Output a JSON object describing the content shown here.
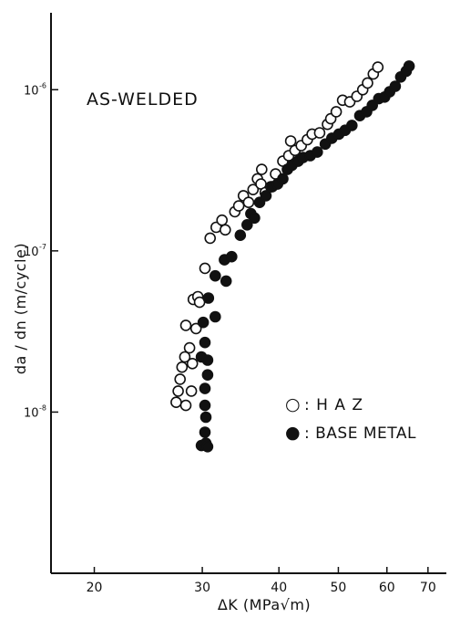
{
  "chart_data": {
    "type": "scatter",
    "title": "AS-WELDED",
    "xlabel": "ΔK (MPa√m)",
    "ylabel": "da / dn (m/cycle)",
    "x_scale": "log",
    "y_scale": "log",
    "xlim": [
      17,
      75
    ],
    "ylim": [
      1e-09,
      3e-06
    ],
    "x_ticks": [
      20,
      30,
      40,
      50,
      60,
      70
    ],
    "x_tick_labels": [
      "20",
      "30",
      "40",
      "50",
      "60",
      "70"
    ],
    "y_ticks": [
      1e-08,
      1e-07,
      1e-06
    ],
    "y_tick_labels": [
      "10",
      "10",
      "10"
    ],
    "y_tick_exponents": [
      "-8",
      "-7",
      "-6"
    ],
    "grid": false,
    "legend_position": "right",
    "series": [
      {
        "name": "HAZ",
        "marker": "open-circle",
        "color": "#111111",
        "points": [
          [
            27.2,
            1.15e-08
          ],
          [
            27.4,
            1.35e-08
          ],
          [
            27.6,
            1.6e-08
          ],
          [
            27.8,
            1.9e-08
          ],
          [
            28.1,
            2.2e-08
          ],
          [
            28.6,
            2.5e-08
          ],
          [
            28.2,
            1.1e-08
          ],
          [
            28.8,
            1.35e-08
          ],
          [
            28.9,
            2e-08
          ],
          [
            29.3,
            3.3e-08
          ],
          [
            28.2,
            3.45e-08
          ],
          [
            29.0,
            5e-08
          ],
          [
            29.5,
            5.2e-08
          ],
          [
            29.7,
            4.8e-08
          ],
          [
            30.3,
            7.8e-08
          ],
          [
            30.9,
            1.2e-07
          ],
          [
            31.6,
            1.4e-07
          ],
          [
            32.3,
            1.55e-07
          ],
          [
            32.7,
            1.35e-07
          ],
          [
            33.9,
            1.75e-07
          ],
          [
            34.4,
            1.9e-07
          ],
          [
            35.0,
            2.2e-07
          ],
          [
            35.7,
            2e-07
          ],
          [
            36.3,
            2.4e-07
          ],
          [
            36.9,
            2.8e-07
          ],
          [
            37.4,
            2.6e-07
          ],
          [
            37.5,
            3.2e-07
          ],
          [
            38.0,
            2.3e-07
          ],
          [
            38.8,
            2.5e-07
          ],
          [
            39.5,
            3e-07
          ],
          [
            40.6,
            3.6e-07
          ],
          [
            41.5,
            3.9e-07
          ],
          [
            42.5,
            4.2e-07
          ],
          [
            41.8,
            4.8e-07
          ],
          [
            43.5,
            4.5e-07
          ],
          [
            44.5,
            4.9e-07
          ],
          [
            45.3,
            5.3e-07
          ],
          [
            46.6,
            5.4e-07
          ],
          [
            48.0,
            6.1e-07
          ],
          [
            48.6,
            6.6e-07
          ],
          [
            49.6,
            7.3e-07
          ],
          [
            50.8,
            8.6e-07
          ],
          [
            52.2,
            8.4e-07
          ],
          [
            53.6,
            9.1e-07
          ],
          [
            54.8,
            1e-06
          ],
          [
            55.8,
            1.1e-06
          ],
          [
            57.0,
            1.25e-06
          ],
          [
            58.0,
            1.38e-06
          ]
        ]
      },
      {
        "name": "BASE METAL",
        "marker": "filled-circle",
        "color": "#111111",
        "points": [
          [
            29.9,
            6.2e-09
          ],
          [
            30.4,
            6.4e-09
          ],
          [
            30.6,
            6.1e-09
          ],
          [
            30.3,
            7.5e-09
          ],
          [
            30.4,
            9.3e-09
          ],
          [
            30.3,
            1.1e-08
          ],
          [
            30.3,
            1.4e-08
          ],
          [
            30.6,
            1.7e-08
          ],
          [
            29.9,
            2.2e-08
          ],
          [
            30.3,
            2.7e-08
          ],
          [
            30.6,
            2.1e-08
          ],
          [
            30.1,
            3.6e-08
          ],
          [
            31.5,
            3.9e-08
          ],
          [
            30.7,
            5.1e-08
          ],
          [
            31.5,
            7e-08
          ],
          [
            32.8,
            6.5e-08
          ],
          [
            32.6,
            8.8e-08
          ],
          [
            33.5,
            9.2e-08
          ],
          [
            34.6,
            1.25e-07
          ],
          [
            35.5,
            1.45e-07
          ],
          [
            36.0,
            1.7e-07
          ],
          [
            36.5,
            1.6e-07
          ],
          [
            37.2,
            2e-07
          ],
          [
            38.1,
            2.2e-07
          ],
          [
            39.0,
            2.5e-07
          ],
          [
            39.8,
            2.6e-07
          ],
          [
            40.6,
            2.8e-07
          ],
          [
            41.3,
            3.2e-07
          ],
          [
            42.0,
            3.4e-07
          ],
          [
            43.0,
            3.6e-07
          ],
          [
            43.8,
            3.8e-07
          ],
          [
            45.0,
            3.9e-07
          ],
          [
            46.2,
            4.1e-07
          ],
          [
            47.6,
            4.6e-07
          ],
          [
            48.8,
            5e-07
          ],
          [
            50.1,
            5.3e-07
          ],
          [
            51.3,
            5.6e-07
          ],
          [
            52.6,
            6e-07
          ],
          [
            54.2,
            6.9e-07
          ],
          [
            55.6,
            7.3e-07
          ],
          [
            56.8,
            8e-07
          ],
          [
            58.2,
            8.8e-07
          ],
          [
            59.5,
            9e-07
          ],
          [
            60.6,
            9.7e-07
          ],
          [
            61.9,
            1.05e-06
          ],
          [
            63.2,
            1.2e-06
          ],
          [
            64.5,
            1.3e-06
          ],
          [
            65.2,
            1.4e-06
          ]
        ]
      }
    ],
    "legend": [
      {
        "symbol": "○",
        "label": ": H A Z"
      },
      {
        "symbol": "●",
        "label": ": BASE METAL"
      }
    ]
  }
}
